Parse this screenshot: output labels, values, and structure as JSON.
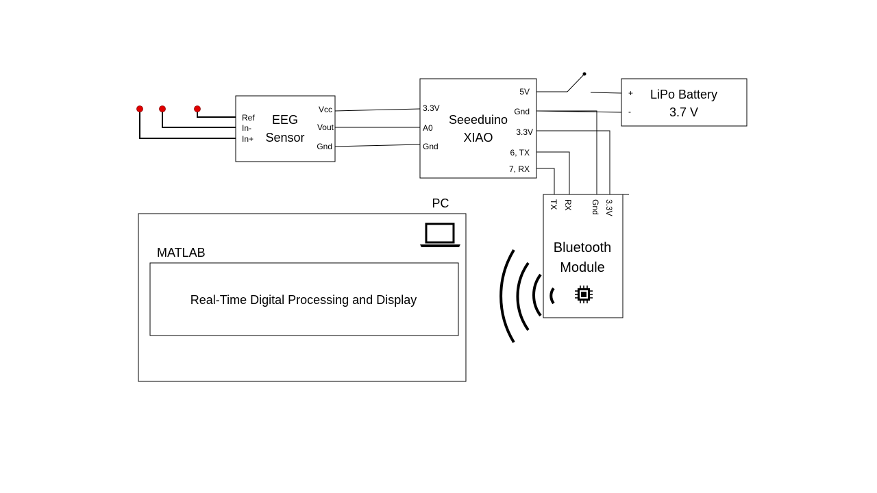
{
  "eeg_sensor": {
    "title_line1": "EEG",
    "title_line2": "Sensor",
    "pins_left": [
      "Ref",
      "In-",
      "In+"
    ],
    "pins_right": [
      "Vcc",
      "Vout",
      "Gnd"
    ]
  },
  "mcu": {
    "title_line1": "Seeeduino",
    "title_line2": "XIAO",
    "pins_left": [
      "3.3V",
      "A0",
      "Gnd"
    ],
    "pins_right": [
      "5V",
      "Gnd",
      "3.3V",
      "6, TX",
      "7, RX"
    ]
  },
  "battery": {
    "title": "LiPo Battery",
    "voltage": "3.7 V",
    "plus": "+",
    "minus": "-"
  },
  "bluetooth": {
    "title_line1": "Bluetooth",
    "title_line2": "Module",
    "pins": [
      "TX",
      "RX",
      "Gnd",
      "3.3V"
    ],
    "icon": "chip-icon"
  },
  "pc": {
    "label": "PC",
    "icon": "laptop-icon",
    "software_label": "MATLAB",
    "process_label": "Real-Time Digital Processing and Display"
  },
  "colors": {
    "electrode": "#e00000",
    "line": "#000000",
    "background": "#ffffff"
  }
}
